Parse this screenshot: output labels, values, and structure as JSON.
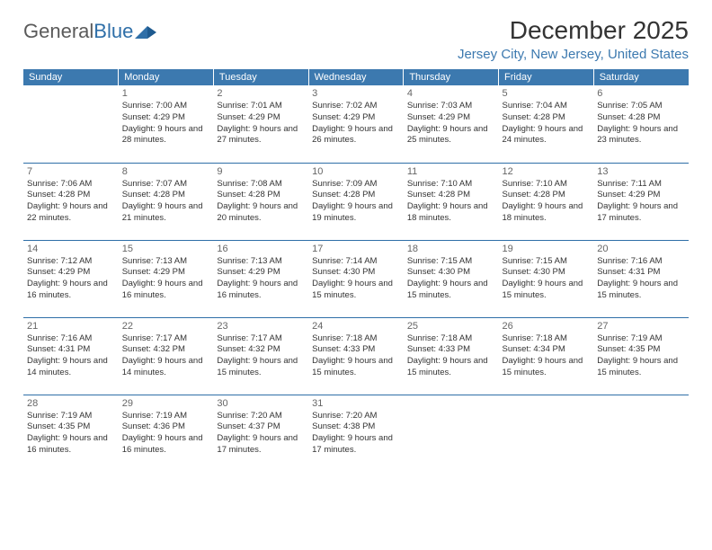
{
  "logo": {
    "text1": "General",
    "text2": "Blue"
  },
  "title": "December 2025",
  "location": "Jersey City, New Jersey, United States",
  "colors": {
    "header_bg": "#3c79af",
    "header_fg": "#ffffff",
    "accent": "#2f6fa8",
    "text": "#333333",
    "location_color": "#3c79af"
  },
  "days_of_week": [
    "Sunday",
    "Monday",
    "Tuesday",
    "Wednesday",
    "Thursday",
    "Friday",
    "Saturday"
  ],
  "weeks": [
    [
      null,
      {
        "n": "1",
        "sr": "7:00 AM",
        "ss": "4:29 PM",
        "dl": "9 hours and 28 minutes."
      },
      {
        "n": "2",
        "sr": "7:01 AM",
        "ss": "4:29 PM",
        "dl": "9 hours and 27 minutes."
      },
      {
        "n": "3",
        "sr": "7:02 AM",
        "ss": "4:29 PM",
        "dl": "9 hours and 26 minutes."
      },
      {
        "n": "4",
        "sr": "7:03 AM",
        "ss": "4:29 PM",
        "dl": "9 hours and 25 minutes."
      },
      {
        "n": "5",
        "sr": "7:04 AM",
        "ss": "4:28 PM",
        "dl": "9 hours and 24 minutes."
      },
      {
        "n": "6",
        "sr": "7:05 AM",
        "ss": "4:28 PM",
        "dl": "9 hours and 23 minutes."
      }
    ],
    [
      {
        "n": "7",
        "sr": "7:06 AM",
        "ss": "4:28 PM",
        "dl": "9 hours and 22 minutes."
      },
      {
        "n": "8",
        "sr": "7:07 AM",
        "ss": "4:28 PM",
        "dl": "9 hours and 21 minutes."
      },
      {
        "n": "9",
        "sr": "7:08 AM",
        "ss": "4:28 PM",
        "dl": "9 hours and 20 minutes."
      },
      {
        "n": "10",
        "sr": "7:09 AM",
        "ss": "4:28 PM",
        "dl": "9 hours and 19 minutes."
      },
      {
        "n": "11",
        "sr": "7:10 AM",
        "ss": "4:28 PM",
        "dl": "9 hours and 18 minutes."
      },
      {
        "n": "12",
        "sr": "7:10 AM",
        "ss": "4:28 PM",
        "dl": "9 hours and 18 minutes."
      },
      {
        "n": "13",
        "sr": "7:11 AM",
        "ss": "4:29 PM",
        "dl": "9 hours and 17 minutes."
      }
    ],
    [
      {
        "n": "14",
        "sr": "7:12 AM",
        "ss": "4:29 PM",
        "dl": "9 hours and 16 minutes."
      },
      {
        "n": "15",
        "sr": "7:13 AM",
        "ss": "4:29 PM",
        "dl": "9 hours and 16 minutes."
      },
      {
        "n": "16",
        "sr": "7:13 AM",
        "ss": "4:29 PM",
        "dl": "9 hours and 16 minutes."
      },
      {
        "n": "17",
        "sr": "7:14 AM",
        "ss": "4:30 PM",
        "dl": "9 hours and 15 minutes."
      },
      {
        "n": "18",
        "sr": "7:15 AM",
        "ss": "4:30 PM",
        "dl": "9 hours and 15 minutes."
      },
      {
        "n": "19",
        "sr": "7:15 AM",
        "ss": "4:30 PM",
        "dl": "9 hours and 15 minutes."
      },
      {
        "n": "20",
        "sr": "7:16 AM",
        "ss": "4:31 PM",
        "dl": "9 hours and 15 minutes."
      }
    ],
    [
      {
        "n": "21",
        "sr": "7:16 AM",
        "ss": "4:31 PM",
        "dl": "9 hours and 14 minutes."
      },
      {
        "n": "22",
        "sr": "7:17 AM",
        "ss": "4:32 PM",
        "dl": "9 hours and 14 minutes."
      },
      {
        "n": "23",
        "sr": "7:17 AM",
        "ss": "4:32 PM",
        "dl": "9 hours and 15 minutes."
      },
      {
        "n": "24",
        "sr": "7:18 AM",
        "ss": "4:33 PM",
        "dl": "9 hours and 15 minutes."
      },
      {
        "n": "25",
        "sr": "7:18 AM",
        "ss": "4:33 PM",
        "dl": "9 hours and 15 minutes."
      },
      {
        "n": "26",
        "sr": "7:18 AM",
        "ss": "4:34 PM",
        "dl": "9 hours and 15 minutes."
      },
      {
        "n": "27",
        "sr": "7:19 AM",
        "ss": "4:35 PM",
        "dl": "9 hours and 15 minutes."
      }
    ],
    [
      {
        "n": "28",
        "sr": "7:19 AM",
        "ss": "4:35 PM",
        "dl": "9 hours and 16 minutes."
      },
      {
        "n": "29",
        "sr": "7:19 AM",
        "ss": "4:36 PM",
        "dl": "9 hours and 16 minutes."
      },
      {
        "n": "30",
        "sr": "7:20 AM",
        "ss": "4:37 PM",
        "dl": "9 hours and 17 minutes."
      },
      {
        "n": "31",
        "sr": "7:20 AM",
        "ss": "4:38 PM",
        "dl": "9 hours and 17 minutes."
      },
      null,
      null,
      null
    ]
  ],
  "labels": {
    "sunrise": "Sunrise:",
    "sunset": "Sunset:",
    "daylight": "Daylight:"
  }
}
